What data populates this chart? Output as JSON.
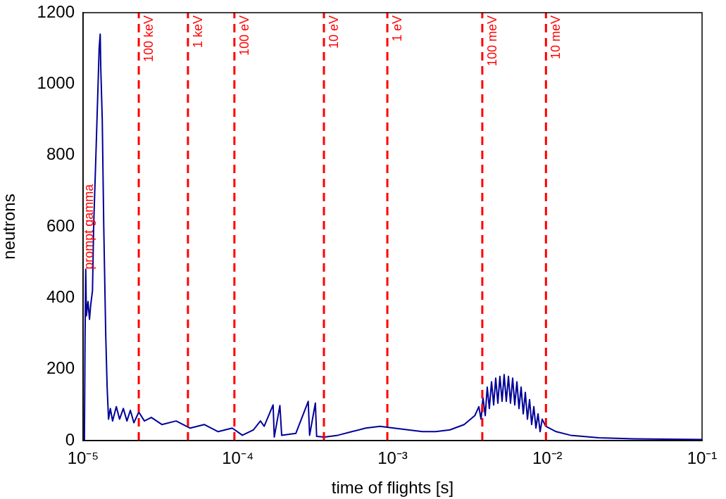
{
  "chart_data": {
    "type": "line",
    "xlabel": "time of flights [s]",
    "ylabel": "neutrons",
    "log": "x",
    "xlim": [
      1e-05,
      0.1
    ],
    "xticks": [
      {
        "value": 1e-05,
        "label": "10⁻⁵"
      },
      {
        "value": 0.0001,
        "label": "10⁻⁴"
      },
      {
        "value": 0.001,
        "label": "10⁻³"
      },
      {
        "value": 0.01,
        "label": "10⁻²"
      },
      {
        "value": 0.1,
        "label": "10⁻¹"
      }
    ],
    "ylim": [
      0,
      1200
    ],
    "yticks": [
      0,
      200,
      400,
      600,
      800,
      1000,
      1200
    ],
    "grid": false,
    "legend": false,
    "marker": "none",
    "line_style": "solid",
    "series": [
      {
        "color": "#000099",
        "x": [
          1e-05,
          1.02e-05,
          1.03e-05,
          1.04e-05,
          1.05e-05,
          1.076e-05,
          1.1e-05,
          1.12e-05,
          1.15e-05,
          1.17e-05,
          1.21e-05,
          1.25e-05,
          1.27e-05,
          1.29e-05,
          1.3e-05,
          1.33e-05,
          1.36e-05,
          1.4e-05,
          1.43e-05,
          1.46e-05,
          1.5e-05,
          1.55e-05,
          1.64e-05,
          1.72e-05,
          1.82e-05,
          1.92e-05,
          2.02e-05,
          2.13e-05,
          2.29e-05,
          2.49e-05,
          2.76e-05,
          3.23e-05,
          3.99e-05,
          4.92e-05,
          6.06e-05,
          7.46e-05,
          9.2e-05,
          0.000107,
          0.000126,
          0.00014,
          0.000148,
          0.000169,
          0.000172,
          0.000187,
          0.000192,
          0.000237,
          0.000285,
          0.000291,
          0.000317,
          0.000323,
          0.000363,
          0.000444,
          0.000546,
          0.00067,
          0.00083,
          0.00102,
          0.00126,
          0.00156,
          0.0019,
          0.00235,
          0.0029,
          0.0034,
          0.00361,
          0.00373,
          0.00384,
          0.00397,
          0.00409,
          0.00422,
          0.00436,
          0.0045,
          0.00464,
          0.00479,
          0.00494,
          0.0051,
          0.00526,
          0.00543,
          0.00561,
          0.00578,
          0.00597,
          0.00616,
          0.00636,
          0.00656,
          0.00677,
          0.00699,
          0.00721,
          0.00744,
          0.00768,
          0.00792,
          0.00818,
          0.00844,
          0.00871,
          0.00898,
          0.00927,
          0.00977,
          0.0114,
          0.0141,
          0.0215,
          0.036,
          0.1
        ],
        "values": [
          0,
          0,
          300,
          480,
          350,
          390,
          340,
          380,
          420,
          600,
          800,
          1000,
          1100,
          1140,
          1050,
          900,
          600,
          300,
          150,
          60,
          90,
          55,
          95,
          60,
          90,
          55,
          85,
          50,
          80,
          55,
          65,
          45,
          55,
          35,
          45,
          25,
          35,
          15,
          30,
          55,
          40,
          100,
          10,
          98,
          15,
          20,
          110,
          15,
          105,
          12,
          10,
          15,
          25,
          35,
          40,
          35,
          30,
          25,
          25,
          30,
          45,
          70,
          95,
          60,
          120,
          70,
          150,
          90,
          165,
          100,
          175,
          105,
          180,
          110,
          185,
          110,
          180,
          105,
          175,
          100,
          165,
          90,
          150,
          75,
          135,
          60,
          115,
          45,
          95,
          35,
          75,
          25,
          60,
          40,
          25,
          15,
          8,
          5,
          3
        ]
      }
    ],
    "ref_lines": [
      {
        "axis": "x",
        "value": 2.29e-05,
        "label": "100 keV",
        "color": "#ff0000",
        "line_style": "dashed"
      },
      {
        "axis": "x",
        "value": 4.76e-05,
        "label": "1 keV",
        "color": "#ff0000",
        "line_style": "dashed"
      },
      {
        "axis": "x",
        "value": 9.5e-05,
        "label": "100 eV",
        "color": "#ff0000",
        "line_style": "dashed"
      },
      {
        "axis": "x",
        "value": 0.00036,
        "label": "10 eV",
        "color": "#ff0000",
        "line_style": "dashed"
      },
      {
        "axis": "x",
        "value": 0.000925,
        "label": "1 eV",
        "color": "#ff0000",
        "line_style": "dashed"
      },
      {
        "axis": "x",
        "value": 0.0038,
        "label": "100 meV",
        "color": "#ff0000",
        "line_style": "dashed"
      },
      {
        "axis": "x",
        "value": 0.0098,
        "label": "10 meV",
        "color": "#ff0000",
        "line_style": "dashed"
      }
    ],
    "annotations": [
      {
        "text": "prompt gamma",
        "x": 1.1e-05,
        "y": 480
      }
    ]
  }
}
